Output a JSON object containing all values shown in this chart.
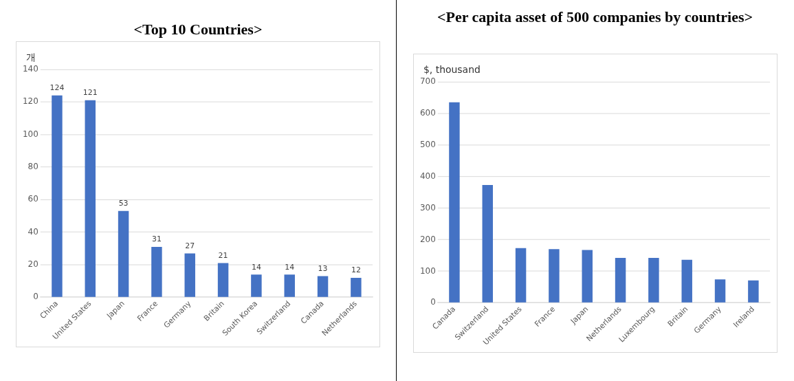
{
  "chart_data": [
    {
      "type": "bar",
      "title": "<Top 10 Countries>",
      "ylabel": "개",
      "categories": [
        "China",
        "United States",
        "Japan",
        "France",
        "Germany",
        "Britain",
        "South Korea",
        "Switzerland",
        "Canada",
        "Netherlands"
      ],
      "series": [
        {
          "color": "#4472c4",
          "values": [
            124,
            121,
            53,
            31,
            27,
            21,
            14,
            14,
            13,
            12
          ]
        }
      ],
      "ylim": [
        0,
        140
      ],
      "yticks": [
        0,
        20,
        40,
        60,
        80,
        100,
        120,
        140
      ],
      "grid": "y",
      "legend": false,
      "data_labels": true
    },
    {
      "type": "bar",
      "title": "<Per capita asset of 500 companies by countries>",
      "ylabel": "$, thousand",
      "categories": [
        "Canada",
        "Switzerland",
        "United States",
        "France",
        "Japan",
        "Netherlands",
        "Luxembourg",
        "Britain",
        "Germany",
        "Ireland"
      ],
      "series": [
        {
          "color": "#4472c4",
          "values": [
            635,
            373,
            173,
            170,
            167,
            142,
            142,
            136,
            74,
            71
          ]
        }
      ],
      "ylim": [
        0,
        700
      ],
      "yticks": [
        0,
        100,
        200,
        300,
        400,
        500,
        600,
        700
      ],
      "grid": "y",
      "legend": false
    }
  ]
}
